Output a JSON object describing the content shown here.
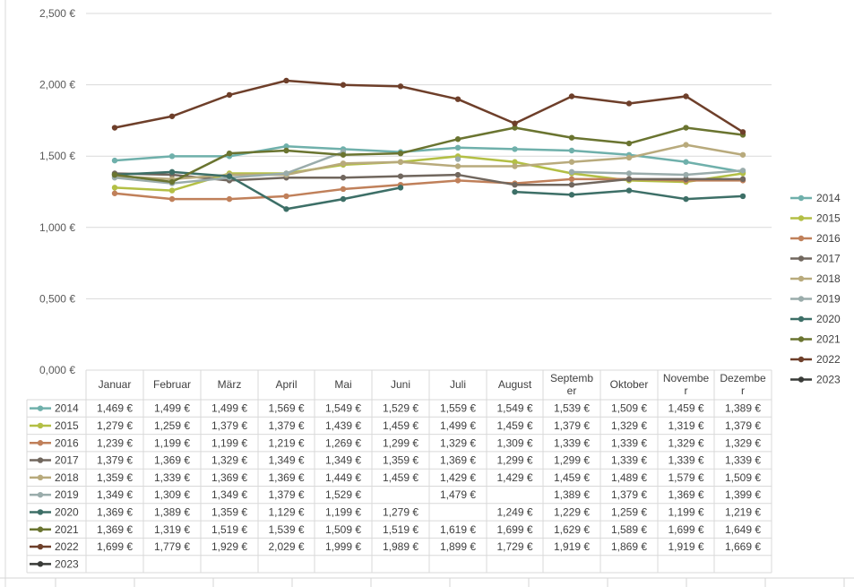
{
  "chart_data": {
    "type": "line",
    "title": "",
    "xlabel": "",
    "ylabel": "",
    "ylim": [
      0,
      2500
    ],
    "y_ticks": [
      {
        "value": 0,
        "label": "0,000 €"
      },
      {
        "value": 500,
        "label": "0,500 €"
      },
      {
        "value": 1000,
        "label": "1,000 €"
      },
      {
        "value": 1500,
        "label": "1,500 €"
      },
      {
        "value": 2000,
        "label": "2,000 €"
      },
      {
        "value": 2500,
        "label": "2,500 €"
      }
    ],
    "categories": [
      "Januar",
      "Februar",
      "März",
      "April",
      "Mai",
      "Juni",
      "Juli",
      "August",
      "September",
      "Oktober",
      "November",
      "Dezember"
    ],
    "category_label_lines": [
      [
        "Januar"
      ],
      [
        "Februar"
      ],
      [
        "März"
      ],
      [
        "April"
      ],
      [
        "Mai"
      ],
      [
        "Juni"
      ],
      [
        "Juli"
      ],
      [
        "August"
      ],
      [
        "Septemb",
        "er"
      ],
      [
        "Oktober"
      ],
      [
        "Novembe",
        "r"
      ],
      [
        "Dezembe",
        "r"
      ]
    ],
    "grid": true,
    "legend_position": "right",
    "data_table": true,
    "series": [
      {
        "name": "2014",
        "color": "#6fb0ab",
        "values": [
          1469,
          1499,
          1499,
          1569,
          1549,
          1529,
          1559,
          1549,
          1539,
          1509,
          1459,
          1389
        ],
        "cells": [
          "1,469 €",
          "1,499 €",
          "1,499 €",
          "1,569 €",
          "1,549 €",
          "1,529 €",
          "1,559 €",
          "1,549 €",
          "1,539 €",
          "1,509 €",
          "1,459 €",
          "1,389 €"
        ]
      },
      {
        "name": "2015",
        "color": "#b3bf45",
        "values": [
          1279,
          1259,
          1379,
          1379,
          1439,
          1459,
          1499,
          1459,
          1379,
          1329,
          1319,
          1379
        ],
        "cells": [
          "1,279 €",
          "1,259 €",
          "1,379 €",
          "1,379 €",
          "1,439 €",
          "1,459 €",
          "1,499 €",
          "1,459 €",
          "1,379 €",
          "1,329 €",
          "1,319 €",
          "1,379 €"
        ]
      },
      {
        "name": "2016",
        "color": "#c0805a",
        "values": [
          1239,
          1199,
          1199,
          1219,
          1269,
          1299,
          1329,
          1309,
          1339,
          1339,
          1329,
          1329
        ],
        "cells": [
          "1,239 €",
          "1,199 €",
          "1,199 €",
          "1,219 €",
          "1,269 €",
          "1,299 €",
          "1,329 €",
          "1,309 €",
          "1,339 €",
          "1,339 €",
          "1,329 €",
          "1,329 €"
        ]
      },
      {
        "name": "2017",
        "color": "#71675e",
        "values": [
          1379,
          1369,
          1329,
          1349,
          1349,
          1359,
          1369,
          1299,
          1299,
          1339,
          1339,
          1339
        ],
        "cells": [
          "1,379 €",
          "1,369 €",
          "1,329 €",
          "1,349 €",
          "1,349 €",
          "1,359 €",
          "1,369 €",
          "1,299 €",
          "1,299 €",
          "1,339 €",
          "1,339 €",
          "1,339 €"
        ]
      },
      {
        "name": "2018",
        "color": "#b8aa7c",
        "values": [
          1359,
          1339,
          1369,
          1369,
          1449,
          1459,
          1429,
          1429,
          1459,
          1489,
          1579,
          1509
        ],
        "cells": [
          "1,359 €",
          "1,339 €",
          "1,369 €",
          "1,369 €",
          "1,449 €",
          "1,459 €",
          "1,429 €",
          "1,429 €",
          "1,459 €",
          "1,489 €",
          "1,579 €",
          "1,509 €"
        ]
      },
      {
        "name": "2019",
        "color": "#9aacab",
        "values": [
          1349,
          1309,
          1349,
          1379,
          1529,
          null,
          1479,
          null,
          1389,
          1379,
          1369,
          1399
        ],
        "cells": [
          "1,349 €",
          "1,309 €",
          "1,349 €",
          "1,379 €",
          "1,529 €",
          "",
          "1,479 €",
          "",
          "1,389 €",
          "1,379 €",
          "1,369 €",
          "1,399 €"
        ]
      },
      {
        "name": "2020",
        "color": "#3d6f67",
        "values": [
          1369,
          1389,
          1359,
          1129,
          1199,
          1279,
          null,
          1249,
          1229,
          1259,
          1199,
          1219
        ],
        "cells": [
          "1,369 €",
          "1,389 €",
          "1,359 €",
          "1,129 €",
          "1,199 €",
          "1,279 €",
          "",
          "1,249 €",
          "1,229 €",
          "1,259 €",
          "1,199 €",
          "1,219 €"
        ]
      },
      {
        "name": "2021",
        "color": "#6a7430",
        "values": [
          1369,
          1319,
          1519,
          1539,
          1509,
          1519,
          1619,
          1699,
          1629,
          1589,
          1699,
          1649
        ],
        "cells": [
          "1,369 €",
          "1,319 €",
          "1,519 €",
          "1,539 €",
          "1,509 €",
          "1,519 €",
          "1,619 €",
          "1,699 €",
          "1,629 €",
          "1,589 €",
          "1,699 €",
          "1,649 €"
        ]
      },
      {
        "name": "2022",
        "color": "#6e3f2a",
        "values": [
          1699,
          1779,
          1929,
          2029,
          1999,
          1989,
          1899,
          1729,
          1919,
          1869,
          1919,
          1669
        ],
        "cells": [
          "1,699 €",
          "1,779 €",
          "1,929 €",
          "2,029 €",
          "1,999 €",
          "1,989 €",
          "1,899 €",
          "1,729 €",
          "1,919 €",
          "1,869 €",
          "1,919 €",
          "1,669 €"
        ]
      },
      {
        "name": "2023",
        "color": "#393b38",
        "values": [
          null,
          null,
          null,
          null,
          null,
          null,
          null,
          null,
          null,
          null,
          null,
          null
        ],
        "cells": [
          "",
          "",
          "",
          "",
          "",
          "",
          "",
          "",
          "",
          "",
          "",
          ""
        ]
      }
    ]
  }
}
